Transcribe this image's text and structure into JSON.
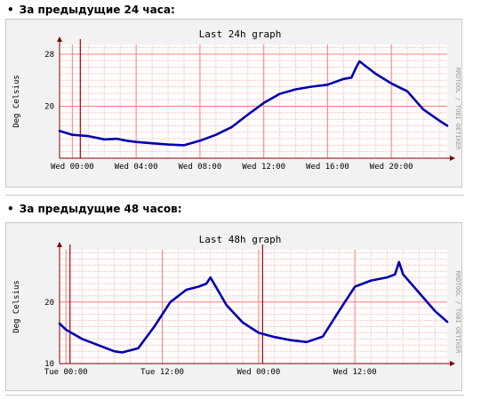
{
  "sections": [
    {
      "heading": "За предыдущие 24 часа:"
    },
    {
      "heading": "За предыдущие 48 часов:"
    }
  ],
  "colors": {
    "series": "#0000b0",
    "grid": "#ffb3b3",
    "current_time_marker": "#b00000",
    "axis": "#7f0000",
    "plot_background": "#ffffff",
    "panel_background": "#f2f2f2"
  },
  "chart_data": [
    {
      "type": "line",
      "title": "Last 24h graph",
      "ylabel": "Deg Celsius",
      "watermark": "RRDTOOL / TOBI OETIKER",
      "x_unit": "hours",
      "xlim": [
        -0.8,
        23.5
      ],
      "ylim": [
        12,
        29.5
      ],
      "x_tick_positions": [
        0,
        4,
        8,
        12,
        16,
        20
      ],
      "x_tick_labels": [
        "Wed 00:00",
        "Wed 04:00",
        "Wed 08:00",
        "Wed 12:00",
        "Wed 16:00",
        "Wed 20:00"
      ],
      "y_ticks": [
        20,
        28
      ],
      "grid": true,
      "vrules": [
        0.5
      ],
      "series": [
        {
          "x": [
            -0.8,
            0.0,
            1.0,
            2.0,
            2.8,
            3.4,
            4.0,
            5.0,
            6.0,
            7.0,
            8.0,
            9.0,
            10.0,
            11.0,
            12.0,
            13.0,
            14.0,
            15.0,
            16.0,
            17.0,
            17.5,
            17.8,
            18.0,
            19.0,
            20.0,
            21.0,
            22.0,
            23.0,
            23.5
          ],
          "y": [
            16.2,
            15.6,
            15.4,
            14.9,
            15.0,
            14.7,
            14.5,
            14.3,
            14.1,
            14.0,
            14.7,
            15.6,
            16.8,
            18.7,
            20.5,
            21.9,
            22.6,
            23.0,
            23.3,
            24.2,
            24.4,
            26.0,
            26.9,
            25.0,
            23.5,
            22.3,
            19.5,
            17.8,
            17.0
          ]
        }
      ]
    },
    {
      "type": "line",
      "title": "Last 48h graph",
      "ylabel": "Deg Celsius",
      "watermark": "RRDTOOL / TOBI OETIKER",
      "x_unit": "hours",
      "xlim": [
        -0.8,
        47.5
      ],
      "ylim": [
        10,
        28.5
      ],
      "x_tick_positions": [
        0,
        12,
        24,
        36
      ],
      "x_tick_labels": [
        "Tue 00:00",
        "Tue 12:00",
        "Wed 00:00",
        "Wed 12:00"
      ],
      "y_ticks": [
        10,
        20
      ],
      "grid": true,
      "vrules": [
        0.5,
        24.5
      ],
      "series": [
        {
          "x": [
            -0.8,
            0.0,
            2.0,
            4.0,
            6.0,
            7.0,
            9.0,
            11.0,
            13.0,
            15.0,
            16.5,
            17.5,
            18.0,
            20.0,
            22.0,
            24.0,
            26.0,
            28.0,
            30.0,
            32.0,
            34.0,
            36.0,
            38.0,
            40.0,
            41.0,
            41.5,
            42.0,
            44.0,
            46.0,
            47.5
          ],
          "y": [
            16.5,
            15.5,
            14.0,
            13.0,
            12.0,
            11.8,
            12.5,
            16.0,
            20.0,
            22.0,
            22.5,
            23.0,
            24.0,
            19.5,
            16.7,
            15.0,
            14.3,
            13.8,
            13.5,
            14.4,
            18.5,
            22.5,
            23.5,
            24.0,
            24.5,
            26.5,
            24.5,
            21.5,
            18.5,
            16.8
          ]
        }
      ]
    }
  ]
}
